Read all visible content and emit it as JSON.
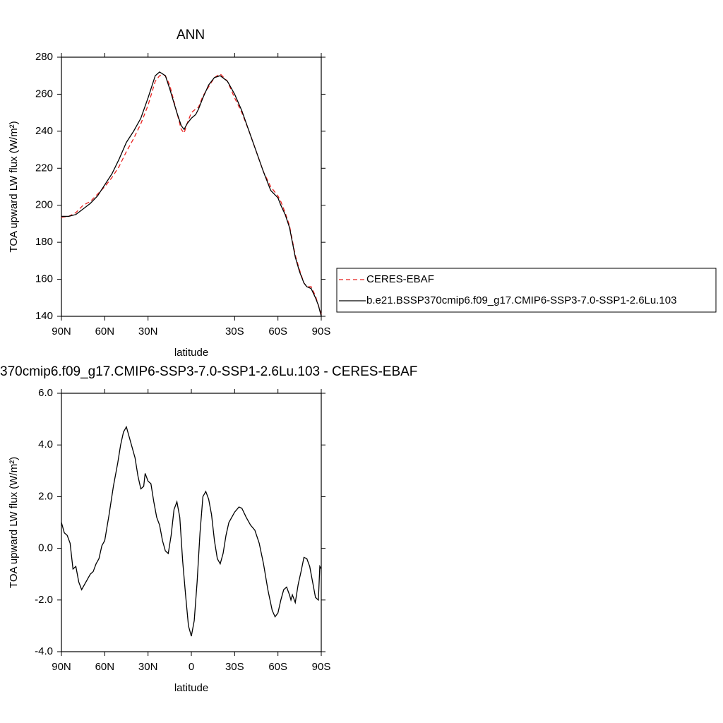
{
  "chart_data": [
    {
      "type": "line",
      "title": "ANN",
      "xlabel": "latitude",
      "ylabel": "TOA upward LW flux (W/m²)",
      "xlim": [
        90,
        -90
      ],
      "ylim": [
        140,
        280
      ],
      "xticks": [
        {
          "value": 90,
          "label": "90N"
        },
        {
          "value": 60,
          "label": "60N"
        },
        {
          "value": 30,
          "label": "30N"
        },
        {
          "value": -30,
          "label": "30S"
        },
        {
          "value": -60,
          "label": "60S"
        },
        {
          "value": -90,
          "label": "90S"
        }
      ],
      "yticks": [
        140,
        160,
        180,
        200,
        220,
        240,
        260,
        280
      ],
      "legend": "right",
      "series": [
        {
          "name": "CERES-EBAF",
          "color": "#e8201e",
          "dash": true,
          "x": [
            90,
            85,
            80,
            75,
            70,
            65,
            60,
            55,
            50,
            45,
            40,
            35,
            30,
            25,
            22,
            18,
            15,
            10,
            7,
            5,
            3,
            0,
            -3,
            -5,
            -8,
            -12,
            -16,
            -20,
            -25,
            -30,
            -35,
            -40,
            -45,
            -50,
            -55,
            -60,
            -62,
            -65,
            -68,
            -70,
            -72,
            -75,
            -78,
            -80,
            -83,
            -86,
            -88,
            -90
          ],
          "values": [
            193.5,
            194,
            196,
            200,
            202,
            206,
            210,
            215,
            221,
            229,
            236,
            244,
            254,
            267,
            270,
            270,
            265,
            250,
            241,
            239,
            244,
            250,
            252,
            253,
            259,
            264,
            269,
            271,
            267,
            258,
            250,
            240,
            229,
            218,
            210,
            205,
            202,
            196,
            189,
            181,
            173,
            165,
            158,
            156,
            156,
            151,
            146,
            141
          ]
        },
        {
          "name": "b.e21.BSSP370cmip6.f09_g17.CMIP6-SSP3-7.0-SSP1-2.6Lu.103",
          "color": "#000000",
          "dash": false,
          "x": [
            90,
            85,
            80,
            75,
            70,
            65,
            60,
            55,
            50,
            45,
            40,
            35,
            30,
            25,
            22,
            18,
            15,
            10,
            7,
            5,
            3,
            0,
            -3,
            -5,
            -8,
            -12,
            -16,
            -20,
            -25,
            -30,
            -35,
            -40,
            -45,
            -50,
            -55,
            -60,
            -62,
            -65,
            -68,
            -70,
            -72,
            -75,
            -78,
            -80,
            -83,
            -86,
            -88,
            -90
          ],
          "values": [
            194,
            194,
            195,
            198,
            201,
            205,
            211,
            217,
            225,
            234,
            240,
            247,
            258,
            270,
            272,
            270,
            263,
            250,
            243,
            241,
            244,
            247,
            249,
            252,
            258,
            265,
            269,
            270,
            267,
            260,
            251,
            240,
            229,
            218,
            208,
            204,
            200,
            195,
            188,
            180,
            172,
            164,
            158,
            156,
            155,
            150,
            146,
            140
          ]
        }
      ]
    },
    {
      "type": "line",
      "title": "370cmip6.f09_g17.CMIP6-SSP3-7.0-SSP1-2.6Lu.103 - CERES-EBAF",
      "xlabel": "latitude",
      "ylabel": "TOA upward LW flux (W/m²)",
      "xlim": [
        90,
        -90
      ],
      "ylim": [
        -4,
        6
      ],
      "xticks": [
        {
          "value": 90,
          "label": "90N"
        },
        {
          "value": 60,
          "label": "60N"
        },
        {
          "value": 30,
          "label": "30N"
        },
        0,
        {
          "value": -30,
          "label": "30S"
        },
        {
          "value": -60,
          "label": "60S"
        },
        {
          "value": -90,
          "label": "90S"
        }
      ],
      "yticks": [
        {
          "value": -4,
          "label": "-4.0"
        },
        {
          "value": -2,
          "label": "-2.0"
        },
        {
          "value": 0,
          "label": "0.0"
        },
        {
          "value": 2,
          "label": "2.0"
        },
        {
          "value": 4,
          "label": "4.0"
        },
        {
          "value": 6,
          "label": "6.0"
        }
      ],
      "series": [
        {
          "color": "#000000",
          "x": [
            90,
            88,
            86,
            84,
            82,
            80,
            78,
            76,
            74,
            72,
            70,
            68,
            66,
            64,
            62,
            60,
            57,
            54,
            51,
            49,
            47,
            45,
            43,
            41,
            39,
            37,
            35,
            33,
            32,
            30,
            28,
            26,
            24,
            22,
            20,
            18,
            16,
            14,
            12,
            10,
            8,
            6,
            4,
            2,
            0,
            -2,
            -4,
            -6,
            -8,
            -10,
            -12,
            -14,
            -16,
            -18,
            -20,
            -22,
            -24,
            -26,
            -28,
            -30,
            -33,
            -35,
            -38,
            -41,
            -44,
            -47,
            -50,
            -53,
            -56,
            -58,
            -60,
            -62,
            -64,
            -66,
            -68,
            -69,
            -70,
            -72,
            -74,
            -76,
            -78,
            -80,
            -82,
            -84,
            -86,
            -88,
            -89,
            -90
          ],
          "values": [
            1.0,
            0.6,
            0.5,
            0.2,
            -0.8,
            -0.7,
            -1.3,
            -1.6,
            -1.4,
            -1.2,
            -1.0,
            -0.9,
            -0.6,
            -0.4,
            0.1,
            0.3,
            1.3,
            2.4,
            3.3,
            4.0,
            4.5,
            4.7,
            4.3,
            3.9,
            3.5,
            2.8,
            2.3,
            2.4,
            2.9,
            2.6,
            2.5,
            1.8,
            1.2,
            0.9,
            0.3,
            -0.1,
            -0.2,
            0.5,
            1.5,
            1.8,
            1.2,
            -0.5,
            -1.8,
            -3.0,
            -3.4,
            -2.8,
            -1.3,
            0.6,
            2.0,
            2.2,
            1.9,
            1.3,
            0.3,
            -0.4,
            -0.6,
            -0.2,
            0.5,
            1.0,
            1.2,
            1.4,
            1.6,
            1.55,
            1.2,
            0.9,
            0.7,
            0.2,
            -0.6,
            -1.6,
            -2.4,
            -2.65,
            -2.5,
            -2.0,
            -1.6,
            -1.5,
            -1.8,
            -2.0,
            -1.8,
            -2.1,
            -1.4,
            -0.9,
            -0.35,
            -0.4,
            -0.7,
            -1.3,
            -1.9,
            -2.0,
            -0.7,
            -0.8
          ]
        }
      ]
    }
  ]
}
